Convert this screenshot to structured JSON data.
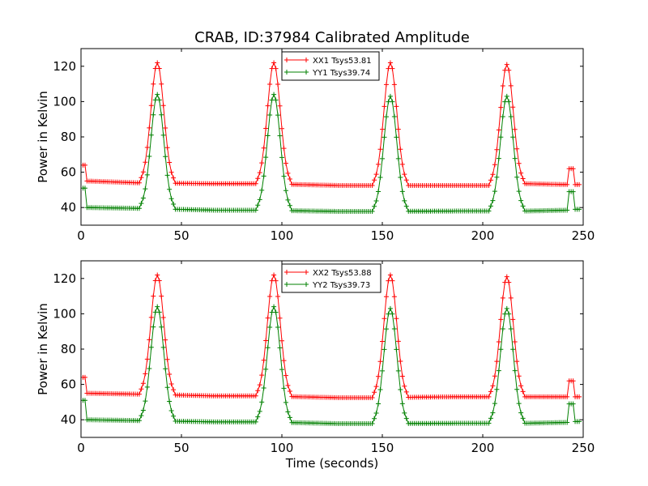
{
  "title": "CRAB, ID:37984 Calibrated Amplitude",
  "chart_data": [
    {
      "type": "line",
      "xlabel": "",
      "ylabel": "Power in Kelvin",
      "xlim": [
        0,
        250
      ],
      "ylim": [
        30,
        130
      ],
      "xticks": [
        0,
        50,
        100,
        150,
        200,
        250
      ],
      "yticks": [
        40,
        60,
        80,
        100,
        120
      ],
      "x_start": 1,
      "x_end": 248,
      "grid": false,
      "legend_position": "top-center",
      "series": [
        {
          "name": "XX1 Tsys53.81",
          "color": "#ff0000",
          "marker": "+",
          "segments": [
            [
              1,
              64
            ],
            [
              2,
              64
            ],
            [
              3,
              55
            ],
            [
              28,
              54
            ],
            [
              66,
              53.5
            ],
            [
              89,
              53.5
            ],
            [
              128,
              52.5
            ],
            [
              147,
              52.5
            ],
            [
              186,
              52.5
            ],
            [
              206,
              52.5
            ],
            [
              221,
              53.5
            ],
            [
              242,
              53
            ],
            [
              243,
              62
            ],
            [
              245,
              62
            ],
            [
              246,
              53
            ],
            [
              248,
              53
            ]
          ],
          "peaks": [
            {
              "center": 38,
              "height": 122
            },
            {
              "center": 96,
              "height": 122
            },
            {
              "center": 154,
              "height": 122
            },
            {
              "center": 212,
              "height": 121
            }
          ]
        },
        {
          "name": "YY1 Tsys39.74",
          "color": "#008000",
          "marker": "+",
          "segments": [
            [
              1,
              51
            ],
            [
              2,
              51
            ],
            [
              3,
              40
            ],
            [
              30,
              39.5
            ],
            [
              66,
              38.5
            ],
            [
              89,
              38.5
            ],
            [
              128,
              37.8
            ],
            [
              147,
              37.8
            ],
            [
              186,
              38
            ],
            [
              206,
              38
            ],
            [
              221,
              38
            ],
            [
              242,
              38.5
            ],
            [
              243,
              49
            ],
            [
              245,
              49
            ],
            [
              246,
              39
            ],
            [
              248,
              39
            ]
          ],
          "peaks": [
            {
              "center": 38,
              "height": 104
            },
            {
              "center": 96,
              "height": 104
            },
            {
              "center": 154,
              "height": 103
            },
            {
              "center": 212,
              "height": 103
            }
          ]
        }
      ]
    },
    {
      "type": "line",
      "xlabel": "Time (seconds)",
      "ylabel": "Power in Kelvin",
      "xlim": [
        0,
        250
      ],
      "ylim": [
        30,
        130
      ],
      "xticks": [
        0,
        50,
        100,
        150,
        200,
        250
      ],
      "yticks": [
        40,
        60,
        80,
        100,
        120
      ],
      "x_start": 1,
      "x_end": 248,
      "grid": false,
      "legend_position": "top-center",
      "series": [
        {
          "name": "XX2 Tsys53.88",
          "color": "#ff0000",
          "marker": "+",
          "segments": [
            [
              1,
              64
            ],
            [
              2,
              64
            ],
            [
              3,
              55
            ],
            [
              28,
              54.5
            ],
            [
              66,
              53.5
            ],
            [
              89,
              53.5
            ],
            [
              128,
              52.5
            ],
            [
              147,
              52.5
            ],
            [
              186,
              53
            ],
            [
              206,
              53
            ],
            [
              221,
              53
            ],
            [
              242,
              53
            ],
            [
              243,
              62
            ],
            [
              245,
              62
            ],
            [
              246,
              53
            ],
            [
              248,
              53
            ]
          ],
          "peaks": [
            {
              "center": 38,
              "height": 122
            },
            {
              "center": 96,
              "height": 122
            },
            {
              "center": 154,
              "height": 122
            },
            {
              "center": 212,
              "height": 121
            }
          ]
        },
        {
          "name": "YY2 Tsys39.73",
          "color": "#008000",
          "marker": "+",
          "segments": [
            [
              1,
              51
            ],
            [
              2,
              51
            ],
            [
              3,
              40
            ],
            [
              30,
              39.5
            ],
            [
              66,
              38.8
            ],
            [
              89,
              38.8
            ],
            [
              128,
              37.8
            ],
            [
              147,
              37.8
            ],
            [
              186,
              38
            ],
            [
              206,
              38
            ],
            [
              221,
              38
            ],
            [
              242,
              38.5
            ],
            [
              243,
              49
            ],
            [
              245,
              49
            ],
            [
              246,
              39
            ],
            [
              248,
              39
            ]
          ],
          "peaks": [
            {
              "center": 38,
              "height": 104
            },
            {
              "center": 96,
              "height": 104
            },
            {
              "center": 154,
              "height": 103
            },
            {
              "center": 212,
              "height": 103
            }
          ]
        }
      ]
    }
  ]
}
